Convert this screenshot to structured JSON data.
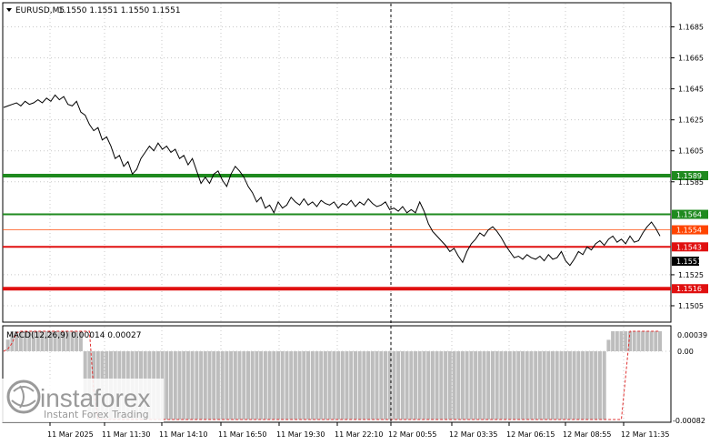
{
  "symbol_header": {
    "symbol": "EURUSD,M5",
    "ohlc": "1.1550 1.1551 1.1550 1.1551",
    "dropdown_icon": "triangle-down-icon"
  },
  "price_axis": {
    "ticks": [
      "1.1685",
      "1.1665",
      "1.1645",
      "1.1625",
      "1.1605",
      "1.1585",
      "1.1525",
      "1.1505"
    ]
  },
  "levels": [
    {
      "name": "1.1589",
      "value": 1.1589,
      "color": "#1f8a1f",
      "thick": true
    },
    {
      "name": "1.1564",
      "value": 1.1564,
      "color": "#1f8a1f",
      "thick": false
    },
    {
      "name": "1.1554",
      "value": 1.1554,
      "color": "#ff4400",
      "thick": false,
      "thin": true
    },
    {
      "name": "1.1543",
      "value": 1.1543,
      "color": "#e01010",
      "thick": false
    },
    {
      "name": "1.1516",
      "value": 1.1516,
      "color": "#e01010",
      "thick": true
    }
  ],
  "current_price": {
    "label": "1.1551",
    "value": 1.1551
  },
  "macd": {
    "label": "MACD(12,26,9) 0.00014 0.00027",
    "ticks": [
      "0.00039",
      "0.00",
      "-0.00082"
    ]
  },
  "time_axis": {
    "labels": [
      "11 Mar 2025",
      "11 Mar 11:30",
      "11 Mar 14:10",
      "11 Mar 16:50",
      "11 Mar 19:30",
      "11 Mar 22:10",
      "12 Mar 00:55",
      "12 Mar 03:35",
      "12 Mar 06:15",
      "12 Mar 08:55",
      "12 Mar 11:35"
    ]
  },
  "watermark": {
    "brand": "instaforex",
    "tagline": "Instant Forex Trading"
  },
  "chart_data": {
    "type": "line",
    "title": "EURUSD,M5",
    "ylim": [
      1.1495,
      1.17
    ],
    "x_labels": [
      "11 Mar 11:30",
      "11 Mar 14:10",
      "11 Mar 16:50",
      "11 Mar 19:30",
      "11 Mar 22:10",
      "12 Mar 00:55",
      "12 Mar 03:35",
      "12 Mar 06:15",
      "12 Mar 08:55",
      "12 Mar 11:35"
    ],
    "series": [
      {
        "values": [
          1.1633,
          1.1634,
          1.1635,
          1.1636,
          1.1634,
          1.1637,
          1.1635,
          1.1636,
          1.1638,
          1.1636,
          1.1639,
          1.1637,
          1.1641,
          1.1638,
          1.164,
          1.1635,
          1.1634,
          1.1637,
          1.163,
          1.1628,
          1.1622,
          1.1618,
          1.162,
          1.1612,
          1.1614,
          1.1608,
          1.16,
          1.1602,
          1.1595,
          1.1598,
          1.159,
          1.1593,
          1.16,
          1.1604,
          1.1608,
          1.1605,
          1.161,
          1.1606,
          1.1608,
          1.1604,
          1.1606,
          1.16,
          1.1602,
          1.1596,
          1.16,
          1.1592,
          1.1584,
          1.1588,
          1.1584,
          1.159,
          1.1592,
          1.1586,
          1.1582,
          1.159,
          1.1595,
          1.1592,
          1.1588,
          1.1582,
          1.1578,
          1.1572,
          1.1575,
          1.1568,
          1.157,
          1.1565,
          1.1572,
          1.1568,
          1.157,
          1.1575,
          1.1572,
          1.157,
          1.1574,
          1.157,
          1.1572,
          1.1569,
          1.1573,
          1.1571,
          1.157,
          1.1572,
          1.1568,
          1.1571,
          1.157,
          1.1573,
          1.1569,
          1.1572,
          1.157,
          1.1574,
          1.1571,
          1.1569,
          1.157,
          1.1572,
          1.1567,
          1.1568,
          1.1566,
          1.1569,
          1.1565,
          1.1567,
          1.1565,
          1.1572,
          1.1566,
          1.1558,
          1.1553,
          1.155,
          1.1547,
          1.1544,
          1.154,
          1.1542,
          1.1537,
          1.1533,
          1.154,
          1.1545,
          1.1548,
          1.1552,
          1.155,
          1.1554,
          1.1556,
          1.1553,
          1.1549,
          1.1544,
          1.154,
          1.1536,
          1.1537,
          1.1535,
          1.1538,
          1.1536,
          1.1535,
          1.1537,
          1.1534,
          1.1538,
          1.1535,
          1.1536,
          1.154,
          1.1534,
          1.1531,
          1.1535,
          1.154,
          1.1538,
          1.1543,
          1.1541,
          1.1545,
          1.1547,
          1.1544,
          1.1548,
          1.155,
          1.1546,
          1.1548,
          1.1545,
          1.155,
          1.1546,
          1.1547,
          1.1552,
          1.1556,
          1.1559,
          1.1555,
          1.155
        ]
      }
    ]
  }
}
